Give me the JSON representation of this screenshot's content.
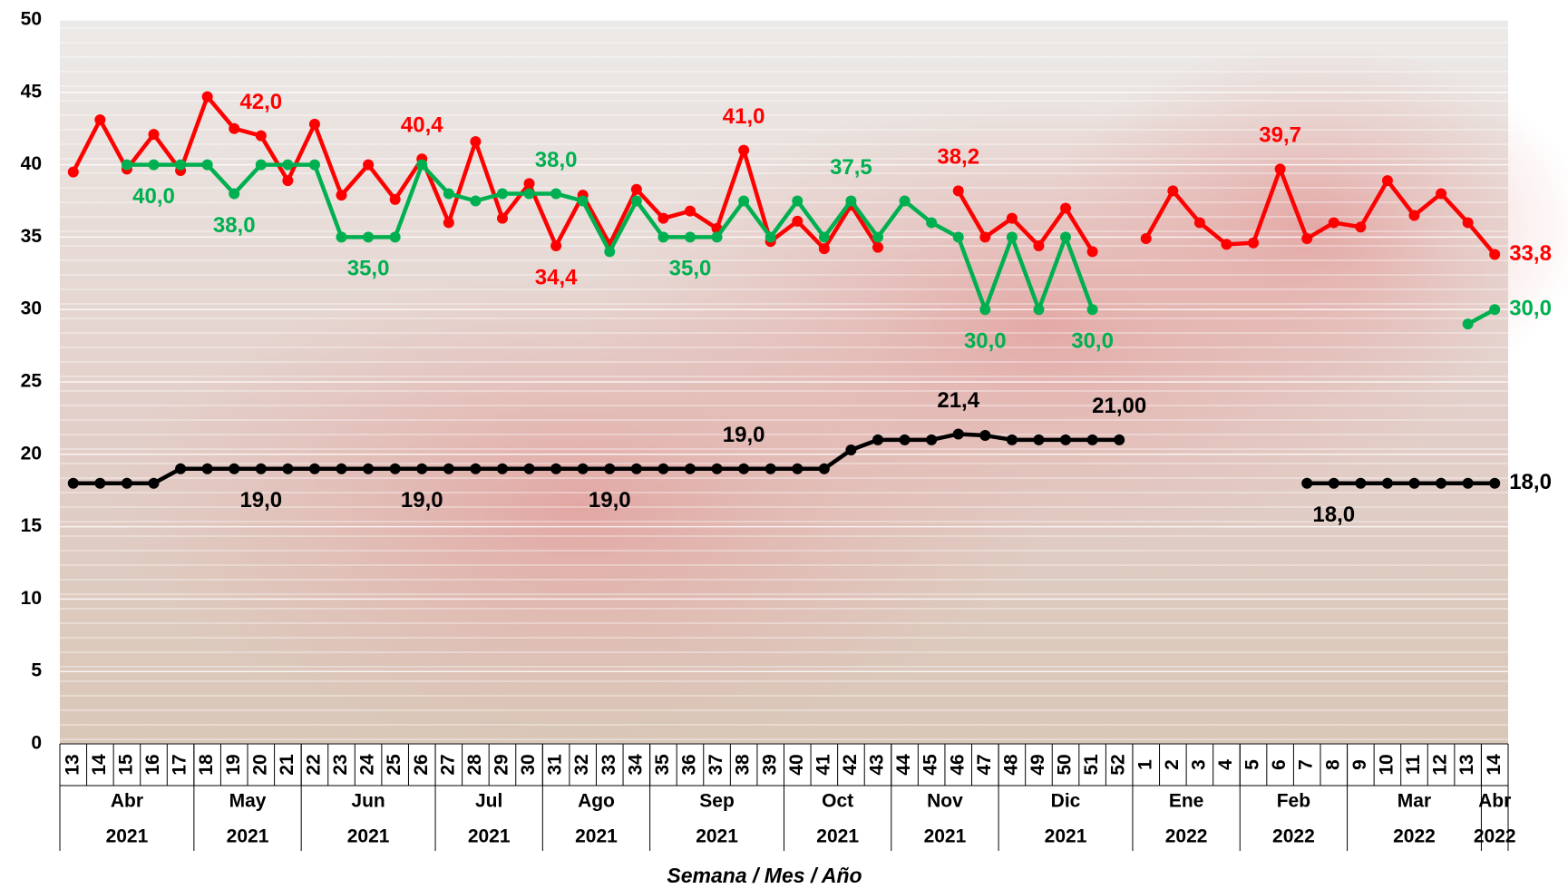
{
  "chart_data": {
    "type": "line",
    "x_label": "Semana / Mes / Año",
    "categories": [
      "13",
      "14",
      "15",
      "16",
      "17",
      "18",
      "19",
      "20",
      "21",
      "22",
      "23",
      "24",
      "25",
      "26",
      "27",
      "28",
      "29",
      "30",
      "31",
      "32",
      "33",
      "34",
      "35",
      "36",
      "37",
      "38",
      "39",
      "40",
      "41",
      "42",
      "43",
      "44",
      "45",
      "46",
      "47",
      "48",
      "49",
      "50",
      "51",
      "52",
      "1",
      "2",
      "3",
      "4",
      "5",
      "6",
      "7",
      "8",
      "9",
      "10",
      "11",
      "12",
      "13",
      "14"
    ],
    "months": [
      "Abr",
      null,
      null,
      null,
      null,
      "May",
      null,
      null,
      null,
      "Jun",
      null,
      null,
      null,
      null,
      "Jul",
      null,
      null,
      null,
      "Ago",
      null,
      null,
      null,
      "Sep",
      null,
      null,
      null,
      null,
      "Oct",
      null,
      null,
      null,
      "Nov",
      null,
      null,
      null,
      "Dic",
      null,
      null,
      null,
      null,
      "Ene",
      null,
      null,
      null,
      "Feb",
      null,
      null,
      null,
      "Mar",
      null,
      null,
      null,
      null,
      "Abr"
    ],
    "years": [
      "2021",
      null,
      null,
      null,
      null,
      "2021",
      null,
      null,
      null,
      "2021",
      null,
      null,
      null,
      null,
      "2021",
      null,
      null,
      null,
      "2021",
      null,
      null,
      null,
      "2021",
      null,
      null,
      null,
      null,
      "2021",
      null,
      null,
      null,
      "2021",
      null,
      null,
      null,
      "2021",
      null,
      null,
      null,
      null,
      "2022",
      null,
      null,
      null,
      "2022",
      null,
      null,
      null,
      "2022",
      null,
      null,
      null,
      null,
      "2022"
    ],
    "ylim": [
      0,
      50
    ],
    "yticks": [
      0,
      5,
      10,
      15,
      20,
      25,
      30,
      35,
      40,
      45,
      50
    ],
    "grid": true,
    "series": [
      {
        "color": "#ff0000",
        "values": [
          39.5,
          43.1,
          39.7,
          42.1,
          39.6,
          44.7,
          42.5,
          42.0,
          38.9,
          42.8,
          37.9,
          40.0,
          37.6,
          40.4,
          36.0,
          41.6,
          36.3,
          38.7,
          34.4,
          37.9,
          34.5,
          38.3,
          36.3,
          36.8,
          35.6,
          41.0,
          34.7,
          36.1,
          34.2,
          37.2,
          34.3,
          null,
          null,
          38.2,
          35.0,
          36.3,
          34.4,
          37.0,
          34.0,
          null,
          34.9,
          38.2,
          36.0,
          34.5,
          34.6,
          39.7,
          34.9,
          36.0,
          35.7,
          38.9,
          36.5,
          38.0,
          36.0,
          33.8
        ],
        "value_labels": [
          null,
          null,
          null,
          null,
          null,
          null,
          null,
          "42,0",
          null,
          null,
          null,
          null,
          null,
          "40,4",
          null,
          null,
          null,
          null,
          "34,4",
          null,
          null,
          null,
          null,
          null,
          null,
          "41,0",
          null,
          null,
          null,
          null,
          null,
          null,
          null,
          "38,2",
          null,
          null,
          null,
          null,
          null,
          null,
          null,
          null,
          null,
          null,
          null,
          "39,7",
          null,
          null,
          null,
          null,
          null,
          null,
          null,
          "33,8"
        ]
      },
      {
        "color": "#00b050",
        "values": [
          null,
          null,
          40.0,
          40.0,
          40.0,
          40.0,
          38.0,
          40.0,
          40.0,
          40.0,
          35.0,
          35.0,
          35.0,
          40.0,
          38.0,
          37.5,
          38.0,
          38.0,
          38.0,
          37.5,
          34.0,
          37.5,
          35.0,
          35.0,
          35.0,
          37.5,
          35.0,
          37.5,
          35.0,
          37.5,
          35.0,
          37.5,
          36.0,
          35.0,
          30.0,
          35.0,
          30.0,
          35.0,
          30.0,
          null,
          null,
          null,
          null,
          null,
          null,
          null,
          null,
          null,
          null,
          null,
          null,
          null,
          29.0,
          30.0
        ],
        "value_labels": [
          null,
          null,
          null,
          "40,0",
          null,
          null,
          "38,0",
          null,
          null,
          null,
          null,
          "35,0",
          null,
          null,
          null,
          null,
          null,
          null,
          "38,0",
          null,
          null,
          null,
          null,
          "35,0",
          null,
          null,
          null,
          null,
          null,
          "37,5",
          null,
          null,
          null,
          null,
          "30,0",
          null,
          null,
          null,
          "30,0",
          null,
          null,
          null,
          null,
          null,
          null,
          null,
          null,
          null,
          null,
          null,
          null,
          null,
          null,
          "30,0"
        ]
      },
      {
        "color": "#000000",
        "values": [
          18,
          18,
          18,
          18,
          19,
          19,
          19,
          19,
          19,
          19,
          19,
          19,
          19,
          19,
          19,
          19,
          19,
          19,
          19,
          19,
          19,
          19,
          19,
          19,
          19,
          19,
          19,
          19,
          19,
          20.3,
          21,
          21,
          21,
          21.4,
          21.3,
          21,
          21,
          21,
          21,
          21,
          null,
          null,
          null,
          null,
          null,
          null,
          18.0,
          18.0,
          18.0,
          18.0,
          18.0,
          18.0,
          18.0,
          18.0
        ],
        "value_labels": [
          null,
          null,
          null,
          null,
          null,
          null,
          null,
          "19,0",
          null,
          null,
          null,
          null,
          null,
          "19,0",
          null,
          null,
          null,
          null,
          null,
          null,
          "19,0",
          null,
          null,
          null,
          null,
          "19,0",
          null,
          null,
          null,
          null,
          null,
          null,
          null,
          "21,4",
          null,
          null,
          null,
          null,
          null,
          "21,00",
          null,
          null,
          null,
          null,
          null,
          null,
          null,
          "18,0",
          null,
          null,
          null,
          null,
          null,
          "18,0"
        ]
      }
    ]
  }
}
